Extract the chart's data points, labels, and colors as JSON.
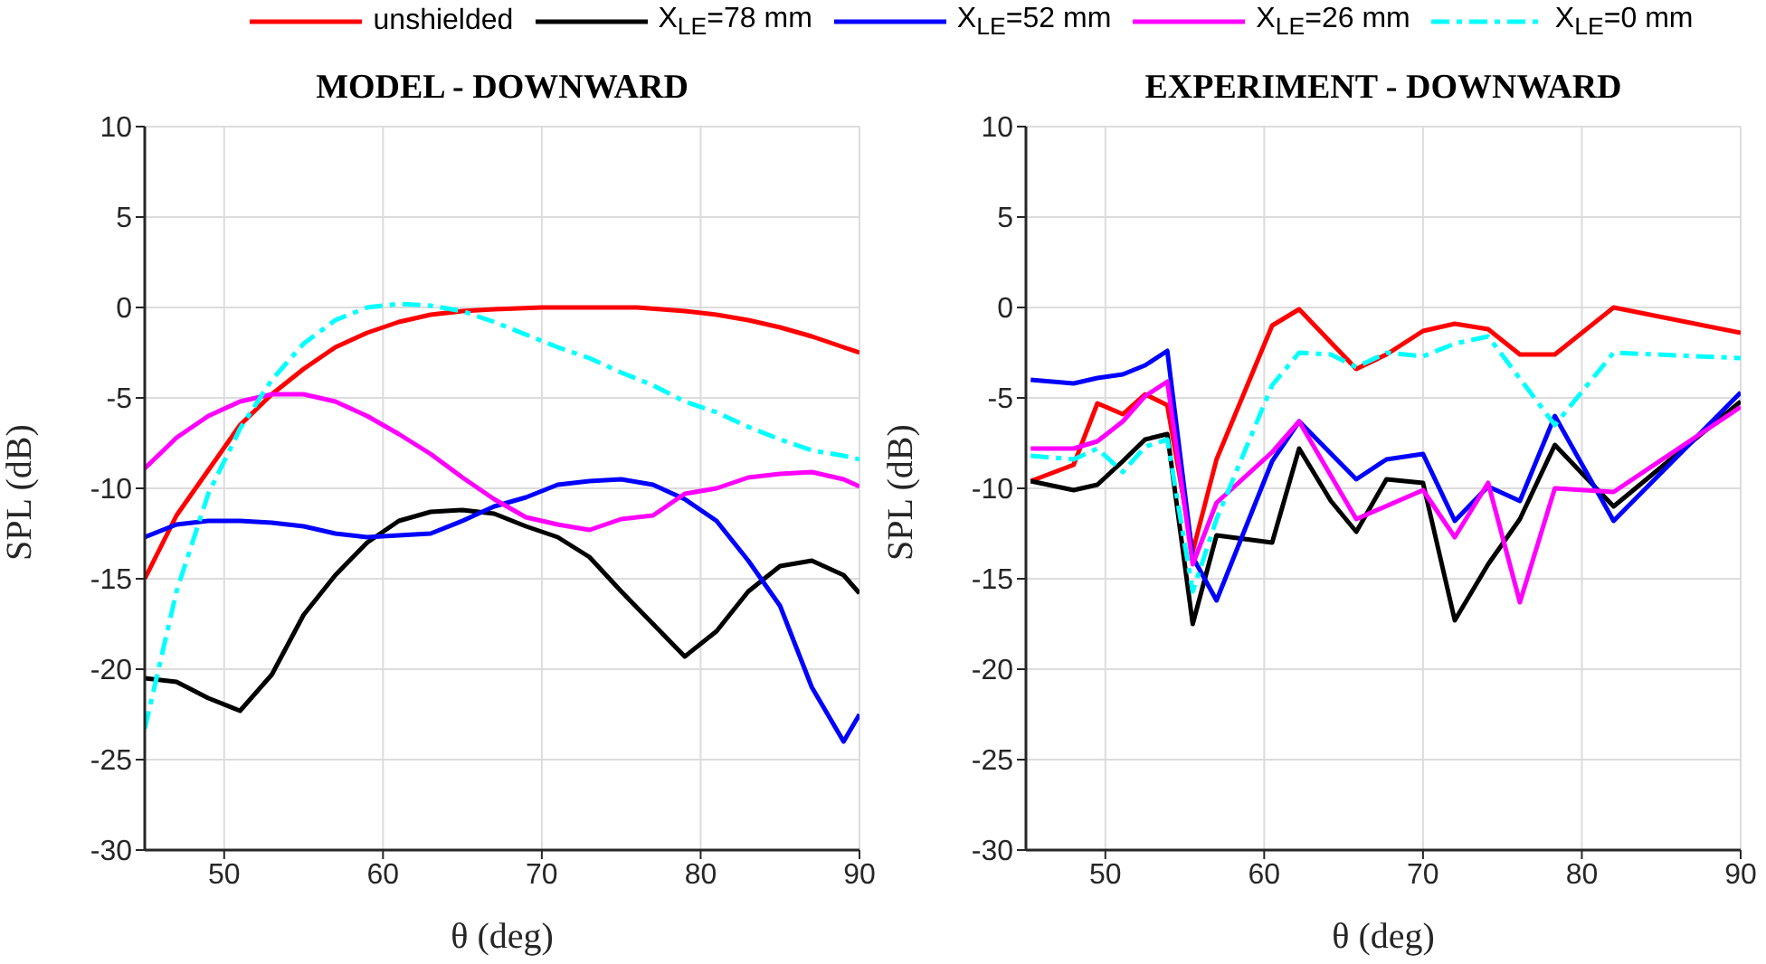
{
  "chart_data": [
    {
      "type": "line",
      "title": "MODEL - DOWNWARD",
      "xlabel": "θ (deg)",
      "ylabel": "SPL (dB)",
      "xlim": [
        45,
        90
      ],
      "xticks": [
        50,
        60,
        70,
        80,
        90
      ],
      "ylim": [
        -30,
        10
      ],
      "yticks": [
        -30,
        -25,
        -20,
        -15,
        -10,
        -5,
        0,
        5,
        10
      ],
      "grid": true,
      "legend": "top",
      "marker": "none",
      "series": [
        {
          "name": "unshielded",
          "color": "#ff0000",
          "x": [
            45,
            47,
            49,
            51,
            53,
            55,
            57,
            59,
            61,
            63,
            65,
            67,
            70,
            73,
            76,
            79,
            81,
            83,
            85,
            87,
            89,
            90
          ],
          "values": [
            -15,
            -11.5,
            -9,
            -6.5,
            -4.8,
            -3.4,
            -2.2,
            -1.4,
            -0.8,
            -0.4,
            -0.2,
            -0.1,
            0,
            0,
            0,
            -0.2,
            -0.4,
            -0.7,
            -1.1,
            -1.6,
            -2.2,
            -2.5
          ]
        },
        {
          "name": "X$_{LE}$=78 mm",
          "color": "#000000",
          "x": [
            45,
            47,
            49,
            51,
            53,
            55,
            57,
            59,
            61,
            63,
            65,
            67,
            69,
            71,
            73,
            75,
            77,
            79,
            81,
            83,
            85,
            87,
            89,
            90
          ],
          "values": [
            -20.5,
            -20.7,
            -21.6,
            -22.3,
            -20.3,
            -17,
            -14.8,
            -13,
            -11.8,
            -11.3,
            -11.2,
            -11.4,
            -12.1,
            -12.7,
            -13.8,
            -15.7,
            -17.5,
            -19.3,
            -17.9,
            -15.7,
            -14.3,
            -14,
            -14.8,
            -15.8
          ]
        },
        {
          "name": "X$_{LE}$=52 mm",
          "color": "#0000ff",
          "x": [
            45,
            47,
            49,
            51,
            53,
            55,
            57,
            59,
            61,
            63,
            65,
            67,
            69,
            71,
            73,
            75,
            77,
            79,
            81,
            83,
            85,
            87,
            89,
            90
          ],
          "values": [
            -12.7,
            -12,
            -11.8,
            -11.8,
            -11.9,
            -12.1,
            -12.5,
            -12.7,
            -12.6,
            -12.5,
            -11.8,
            -11,
            -10.5,
            -9.8,
            -9.6,
            -9.5,
            -9.8,
            -10.6,
            -11.8,
            -14,
            -16.5,
            -21,
            -24,
            -22.5
          ]
        },
        {
          "name": "X$_{LE}$=26 mm",
          "color": "#ff00ff",
          "x": [
            45,
            47,
            49,
            51,
            53,
            55,
            57,
            59,
            61,
            63,
            65,
            67,
            69,
            71,
            73,
            75,
            77,
            79,
            81,
            83,
            85,
            87,
            89,
            90
          ],
          "values": [
            -8.9,
            -7.2,
            -6,
            -5.2,
            -4.8,
            -4.8,
            -5.2,
            -6,
            -7,
            -8.1,
            -9.4,
            -10.6,
            -11.6,
            -12,
            -12.3,
            -11.7,
            -11.5,
            -10.3,
            -10,
            -9.4,
            -9.2,
            -9.1,
            -9.5,
            -9.9
          ]
        },
        {
          "name": "X$_{LE}$=0 mm",
          "color": "#00ffff",
          "line_style": "dashed",
          "x": [
            45,
            47,
            49,
            51,
            53,
            55,
            57,
            59,
            61,
            63,
            65,
            67,
            69,
            71,
            73,
            75,
            77,
            79,
            81,
            83,
            85,
            87,
            89,
            90
          ],
          "values": [
            -23.3,
            -15.7,
            -10.3,
            -6.7,
            -4,
            -2,
            -0.7,
            0,
            0.2,
            0.1,
            -0.2,
            -0.8,
            -1.5,
            -2.2,
            -2.8,
            -3.6,
            -4.3,
            -5.2,
            -5.8,
            -6.6,
            -7.3,
            -7.9,
            -8.2,
            -8.4
          ]
        }
      ]
    },
    {
      "type": "line",
      "title": "EXPERIMENT - DOWNWARD",
      "xlabel": "θ (deg)",
      "ylabel": "SPL (dB)",
      "xlim": [
        45,
        90
      ],
      "xticks": [
        50,
        60,
        70,
        80,
        90
      ],
      "ylim": [
        -30,
        10
      ],
      "yticks": [
        -30,
        -25,
        -20,
        -15,
        -10,
        -5,
        0,
        5,
        10
      ],
      "grid": true,
      "marker": "none",
      "series": [
        {
          "color": "#ff0000",
          "x": [
            45.3,
            48,
            49.5,
            51.1,
            52.5,
            53.9,
            55.5,
            57,
            60.5,
            62.2,
            65.8,
            67.7,
            70,
            72,
            74.1,
            76.1,
            78.3,
            82,
            90
          ],
          "values": [
            -9.6,
            -8.7,
            -5.3,
            -5.9,
            -4.8,
            -5.4,
            -13.5,
            -8.4,
            -1,
            -0.1,
            -3.4,
            -2.6,
            -1.3,
            -0.9,
            -1.2,
            -2.6,
            -2.6,
            0,
            -1.4
          ]
        },
        {
          "color": "#000000",
          "x": [
            45.3,
            48,
            49.5,
            51.1,
            52.5,
            53.9,
            55.5,
            57,
            60.5,
            62.2,
            64.2,
            65.8,
            67.7,
            70,
            72,
            74.1,
            76.1,
            78.3,
            82,
            90
          ],
          "values": [
            -9.6,
            -10.1,
            -9.8,
            -8.5,
            -7.3,
            -7,
            -17.5,
            -12.6,
            -13,
            -7.8,
            -10.7,
            -12.4,
            -9.5,
            -9.7,
            -17.3,
            -14.2,
            -11.7,
            -7.6,
            -11,
            -5.2
          ]
        },
        {
          "color": "#0000ff",
          "x": [
            45.3,
            48,
            49.5,
            51.1,
            52.5,
            53.9,
            55.5,
            57,
            60.5,
            62.2,
            65.8,
            67.7,
            70,
            72,
            74.1,
            76.1,
            78.3,
            82,
            90
          ],
          "values": [
            -4,
            -4.2,
            -3.9,
            -3.7,
            -3.2,
            -2.4,
            -13.8,
            -16.2,
            -8.5,
            -6.3,
            -9.5,
            -8.4,
            -8.1,
            -11.8,
            -9.9,
            -10.7,
            -6,
            -11.8,
            -4.7
          ]
        },
        {
          "color": "#ff00ff",
          "x": [
            45.3,
            48,
            49.5,
            51.1,
            52.5,
            53.9,
            55.5,
            57,
            60.5,
            62.2,
            65.8,
            70,
            72,
            74.1,
            76.1,
            78.3,
            82,
            90
          ],
          "values": [
            -7.8,
            -7.8,
            -7.4,
            -6.3,
            -4.9,
            -4.1,
            -14.2,
            -10.8,
            -8,
            -6.3,
            -11.7,
            -10.1,
            -12.7,
            -9.7,
            -16.3,
            -10,
            -10.2,
            -5.5
          ]
        },
        {
          "color": "#00ffff",
          "line_style": "dashed",
          "x": [
            45.3,
            48,
            49.5,
            51.1,
            52.5,
            53.9,
            55.5,
            57,
            60.5,
            62.2,
            64.2,
            65.8,
            67.7,
            70,
            72,
            74.1,
            78.3,
            82,
            90
          ],
          "values": [
            -8.2,
            -8.4,
            -7.8,
            -9.1,
            -7.7,
            -7.3,
            -15.7,
            -11.7,
            -4.3,
            -2.5,
            -2.6,
            -3.3,
            -2.5,
            -2.7,
            -2,
            -1.6,
            -6.5,
            -2.5,
            -2.8
          ]
        }
      ]
    }
  ]
}
